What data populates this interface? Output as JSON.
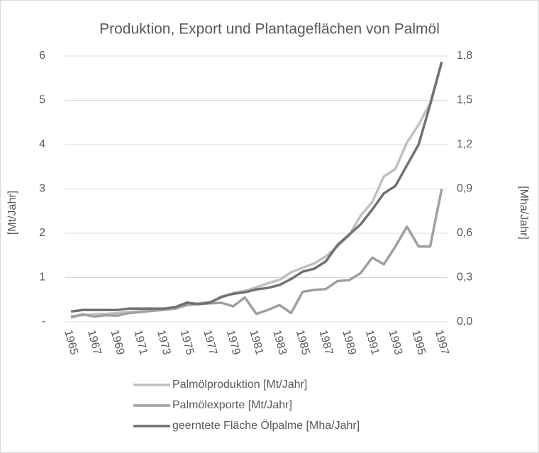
{
  "chart_data": {
    "type": "line",
    "title": "Produktion, Export und Plantageflächen von Palmöl",
    "ylabel": "[Mt/Jahr]",
    "y2label": "[Mha/Jahr]",
    "categories": [
      1965,
      null,
      1967,
      null,
      1969,
      null,
      1971,
      null,
      1973,
      null,
      1975,
      null,
      1977,
      null,
      1979,
      null,
      1981,
      null,
      1983,
      null,
      1985,
      null,
      1987,
      null,
      1989,
      null,
      1991,
      null,
      1993,
      null,
      1995,
      null,
      1997
    ],
    "ylim": [
      0,
      6
    ],
    "yticks": [
      {
        "value": 0,
        "label": "-"
      },
      1,
      2,
      3,
      4,
      5,
      6
    ],
    "y2lim": [
      0,
      1.8
    ],
    "y2ticks": [
      {
        "value": 0,
        "label": "0,0"
      },
      {
        "value": 0.3,
        "label": "0,3"
      },
      {
        "value": 0.6,
        "label": "0,6"
      },
      {
        "value": 0.9,
        "label": "0,9"
      },
      {
        "value": 1.2,
        "label": "1,2"
      },
      {
        "value": 1.5,
        "label": "1,5"
      },
      {
        "value": 1.8,
        "label": "1,8"
      }
    ],
    "grid": true,
    "legend": "bottom",
    "series": [
      {
        "name": "Palmölproduktion [Mt/Jahr]",
        "color": "#c0c0c0",
        "values": [
          0.13,
          0.15,
          0.17,
          0.18,
          0.2,
          0.22,
          0.24,
          0.27,
          0.3,
          0.32,
          0.4,
          0.42,
          0.45,
          0.55,
          0.65,
          0.7,
          0.78,
          0.87,
          0.95,
          1.12,
          1.22,
          1.32,
          1.48,
          1.7,
          1.95,
          2.4,
          2.7,
          3.28,
          3.45,
          4.05,
          4.45,
          4.94,
          5.85
        ]
      },
      {
        "name": "Palmölexporte [Mt/Jahr]",
        "color": "#a0a0a0",
        "values": [
          0.1,
          0.17,
          0.12,
          0.15,
          0.14,
          0.2,
          0.22,
          0.25,
          0.27,
          0.3,
          0.38,
          0.4,
          0.42,
          0.43,
          0.35,
          0.55,
          0.18,
          0.27,
          0.38,
          0.2,
          0.68,
          0.72,
          0.74,
          0.92,
          0.94,
          1.1,
          1.45,
          1.3,
          1.7,
          2.15,
          1.7,
          1.7,
          3.0
        ]
      },
      {
        "name": "geerntete Fläche Ölpalme [Mha/Jahr]",
        "color": "#717171",
        "axis": "y2",
        "values": [
          0.07,
          0.08,
          0.08,
          0.08,
          0.08,
          0.09,
          0.09,
          0.09,
          0.09,
          0.1,
          0.13,
          0.12,
          0.13,
          0.17,
          0.19,
          0.2,
          0.22,
          0.23,
          0.25,
          0.29,
          0.34,
          0.36,
          0.41,
          0.52,
          0.59,
          0.66,
          0.76,
          0.87,
          0.92,
          1.06,
          1.2,
          1.47,
          1.76
        ]
      }
    ]
  }
}
